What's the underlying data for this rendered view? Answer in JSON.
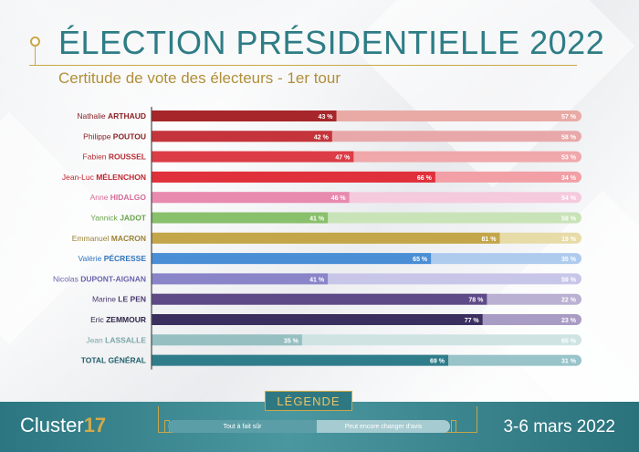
{
  "header": {
    "title": "ÉLECTION PRÉSIDENTIELLE 2022",
    "subtitle": "Certitude de vote des électeurs - 1er tour"
  },
  "chart_data": {
    "type": "bar",
    "stacked": true,
    "orientation": "horizontal",
    "title": "ÉLECTION PRÉSIDENTIELLE 2022",
    "subtitle": "Certitude de vote des électeurs - 1er tour",
    "xlim": [
      0,
      100
    ],
    "categories": [
      {
        "first": "Nathalie",
        "last": "ARTHAUD"
      },
      {
        "first": "Philippe",
        "last": "POUTOU"
      },
      {
        "first": "Fabien",
        "last": "ROUSSEL"
      },
      {
        "first": "Jean-Luc",
        "last": "MÉLENCHON"
      },
      {
        "first": "Anne",
        "last": "HIDALGO"
      },
      {
        "first": "Yannick",
        "last": "JADOT"
      },
      {
        "first": "Emmanuel",
        "last": "MACRON"
      },
      {
        "first": "Valérie",
        "last": "PÉCRESSE"
      },
      {
        "first": "Nicolas",
        "last": "DUPONT-AIGNAN"
      },
      {
        "first": "Marine",
        "last": "LE PEN"
      },
      {
        "first": "Eric",
        "last": "ZEMMOUR"
      },
      {
        "first": "Jean",
        "last": "LASSALLE"
      },
      {
        "first": "",
        "last": "TOTAL GÉNÉRAL"
      }
    ],
    "series": [
      {
        "name": "Tout à fait sûr",
        "values": [
          43,
          42,
          47,
          66,
          46,
          41,
          81,
          65,
          41,
          78,
          77,
          35,
          69
        ]
      },
      {
        "name": "Peut encore changer d'avis",
        "values": [
          57,
          58,
          53,
          34,
          54,
          59,
          19,
          35,
          59,
          22,
          23,
          65,
          31
        ]
      }
    ],
    "value_suffix": " %",
    "colors": {
      "sure": [
        "#a6262a",
        "#c4343a",
        "#dc3c45",
        "#e0303b",
        "#e88aae",
        "#89c06b",
        "#c4a64a",
        "#4a8fd6",
        "#8a85c9",
        "#5f4a88",
        "#3b2f5f",
        "#96bfc2",
        "#2f7d8a"
      ],
      "change": [
        "#e9aaa6",
        "#e8a8a9",
        "#f0a8ab",
        "#f29fa6",
        "#f5cadc",
        "#c9e3b8",
        "#e7dba8",
        "#aecbee",
        "#c8c6e8",
        "#b9b0d2",
        "#a99cc4",
        "#cfe3e3",
        "#97c3c9"
      ],
      "name_first": [
        "#8a1f23",
        "#8a1f23",
        "#b52d33",
        "#c2252f",
        "#d86a96",
        "#6aa24d",
        "#9b8236",
        "#2f74bc",
        "#6a64ad",
        "#4a3a6e",
        "#2e2548",
        "#7aa5a8",
        "#1f5f6b"
      ],
      "name_last": [
        "#8a1f23",
        "#8a1f23",
        "#b52d33",
        "#c2252f",
        "#d86a96",
        "#6aa24d",
        "#9b8236",
        "#2f74bc",
        "#6a64ad",
        "#4a3a6e",
        "#2e2548",
        "#7aa5a8",
        "#1f5f6b"
      ]
    }
  },
  "legend": {
    "title": "LÉGENDE",
    "sure_label": "Tout à fait sûr",
    "change_label": "Peut encore changer d'avis",
    "sure_color": "#5c9ea7",
    "change_color": "#a6cbd0"
  },
  "footer": {
    "brand_word": "Cluster",
    "brand_num": "17",
    "dates": "3-6 mars 2022"
  }
}
